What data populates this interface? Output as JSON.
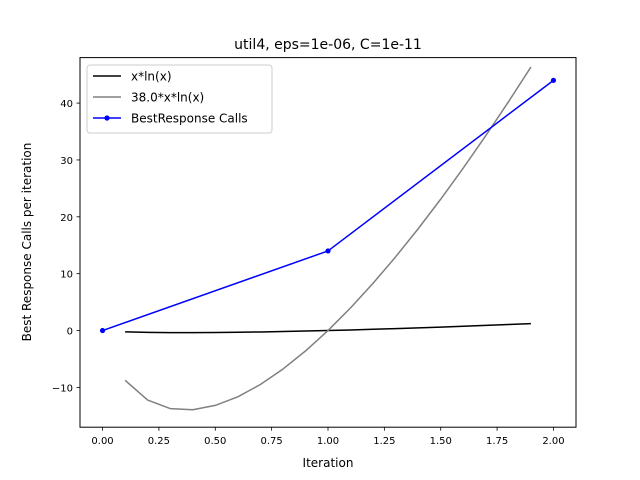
{
  "chart_data": {
    "type": "line",
    "title": "util4, eps=1e-06, C=1e-11",
    "xlabel": "Iteration",
    "ylabel": "Best Response Calls per iteration",
    "xlim": [
      -0.1,
      2.1
    ],
    "ylim": [
      -17,
      48
    ],
    "x_ticks": [
      "0.00",
      "0.25",
      "0.50",
      "0.75",
      "1.00",
      "1.25",
      "1.50",
      "1.75",
      "2.00"
    ],
    "x_tick_values": [
      0,
      0.25,
      0.5,
      0.75,
      1.0,
      1.25,
      1.5,
      1.75,
      2.0
    ],
    "y_ticks": [
      "−10",
      "0",
      "10",
      "20",
      "30",
      "40"
    ],
    "y_tick_values": [
      -10,
      0,
      10,
      20,
      30,
      40
    ],
    "grid": false,
    "legend_position": "top-left",
    "series": [
      {
        "name": "x*ln(x)",
        "color": "#000000",
        "marker": "none",
        "x": [
          0.1,
          0.2,
          0.3,
          0.4,
          0.5,
          0.6,
          0.7,
          0.8,
          0.9,
          1.0,
          1.1,
          1.2,
          1.3,
          1.4,
          1.5,
          1.6,
          1.7,
          1.8,
          1.9
        ],
        "y": [
          -0.23,
          -0.32,
          -0.36,
          -0.37,
          -0.35,
          -0.31,
          -0.25,
          -0.18,
          -0.09,
          0.0,
          0.1,
          0.22,
          0.34,
          0.47,
          0.61,
          0.75,
          0.9,
          1.06,
          1.22
        ]
      },
      {
        "name": "38.0*x*ln(x)",
        "color": "#808080",
        "marker": "none",
        "x": [
          0.1,
          0.2,
          0.3,
          0.4,
          0.5,
          0.6,
          0.7,
          0.8,
          0.9,
          1.0,
          1.1,
          1.2,
          1.3,
          1.4,
          1.5,
          1.6,
          1.7,
          1.8,
          1.9
        ],
        "y": [
          -8.75,
          -12.23,
          -13.73,
          -13.93,
          -13.17,
          -11.65,
          -9.49,
          -6.78,
          -3.6,
          0.0,
          3.98,
          8.31,
          12.96,
          17.9,
          23.11,
          28.58,
          34.28,
          40.21,
          46.34
        ]
      },
      {
        "name": "BestResponse Calls",
        "color": "#0000ff",
        "marker": "dot",
        "x": [
          0,
          1,
          2
        ],
        "y": [
          0,
          14,
          44
        ]
      }
    ]
  }
}
